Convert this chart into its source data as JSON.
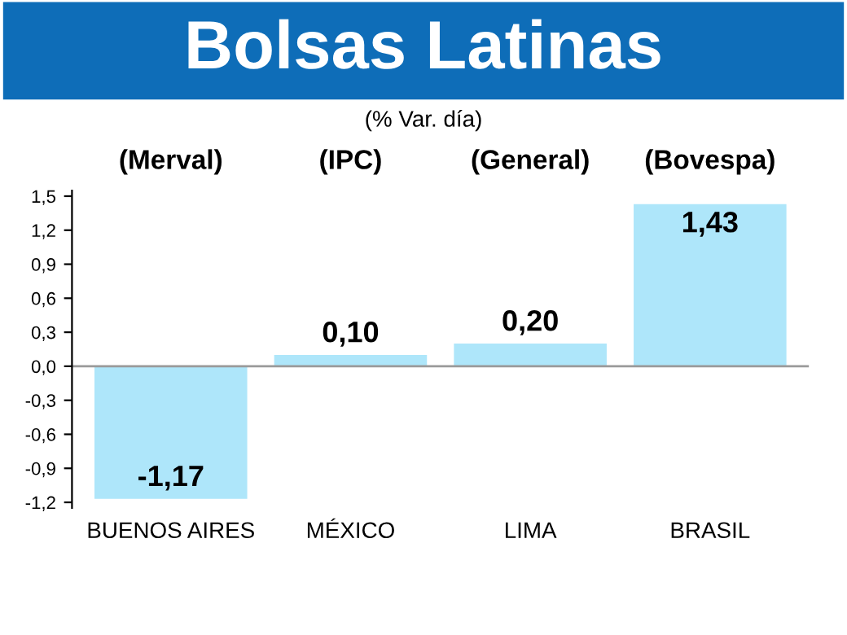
{
  "chart_data": {
    "type": "bar",
    "title": "Bolsas Latinas",
    "subtitle": "(% Var. día)",
    "categories": [
      "BUENOS AIRES",
      "MÉXICO",
      "LIMA",
      "BRASIL"
    ],
    "values": [
      -1.17,
      0.1,
      0.2,
      1.43
    ],
    "value_labels": [
      "-1,17",
      "0,10",
      "0,20",
      "1,43"
    ],
    "color": "#aee6fa",
    "annotations": [
      "(Merval)",
      "(IPC)",
      "(General)",
      "(Bovespa)"
    ],
    "ylim": [
      -1.25,
      1.55
    ],
    "yticks": [
      {
        "value": -1.2,
        "label": "-1,2"
      },
      {
        "value": -0.9,
        "label": "-0,9"
      },
      {
        "value": -0.6,
        "label": "-0,6"
      },
      {
        "value": -0.3,
        "label": "-0,3"
      },
      {
        "value": 0,
        "label": "0,0"
      },
      {
        "value": 0.3,
        "label": "0,3"
      },
      {
        "value": 0.6,
        "label": "0,6"
      },
      {
        "value": 0.9,
        "label": "0,9"
      },
      {
        "value": 1.2,
        "label": "1,2"
      },
      {
        "value": 1.5,
        "label": "1,5"
      }
    ],
    "ref_lines": [
      {
        "axis": "y",
        "value": 0,
        "color": "#9a9a9a"
      }
    ],
    "grid": false,
    "legend": false
  }
}
